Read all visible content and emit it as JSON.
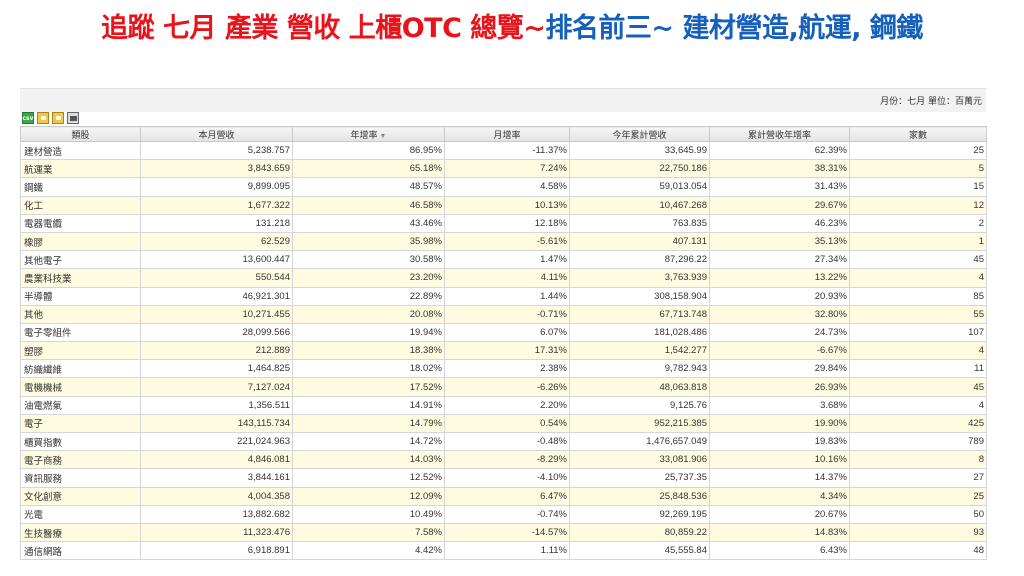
{
  "title": {
    "part1": "追蹤 七月 產業 營收 上櫃OTC 總覽~",
    "part2": "排名前三~ 建材營造,航運, 鋼鐵"
  },
  "unit_label": "月份：七月 單位：百萬元",
  "toolbar": {
    "csv_label": "csv",
    "icons": [
      "csv-icon",
      "lock-icon",
      "lock-icon",
      "print-icon"
    ]
  },
  "table": {
    "headers": [
      "類股",
      "本月營收",
      "年增率",
      "月增率",
      "今年累計營收",
      "累計營收年增率",
      "家數"
    ],
    "sort_indicator": "▼",
    "rows": [
      [
        "建材營造",
        "5,238.757",
        "86.95%",
        "-11.37%",
        "33,645.99",
        "62.39%",
        "25"
      ],
      [
        "航運業",
        "3,843.659",
        "65.18%",
        "7.24%",
        "22,750.186",
        "38.31%",
        "5"
      ],
      [
        "鋼鐵",
        "9,899.095",
        "48.57%",
        "4.58%",
        "59,013.054",
        "31.43%",
        "15"
      ],
      [
        "化工",
        "1,677.322",
        "46.58%",
        "10.13%",
        "10,467.268",
        "29.67%",
        "12"
      ],
      [
        "電器電纜",
        "131.218",
        "43.46%",
        "12.18%",
        "763.835",
        "46.23%",
        "2"
      ],
      [
        "橡膠",
        "62.529",
        "35.98%",
        "-5.61%",
        "407.131",
        "35.13%",
        "1"
      ],
      [
        "其他電子",
        "13,600.447",
        "30.58%",
        "1.47%",
        "87,296.22",
        "27.34%",
        "45"
      ],
      [
        "農業科技業",
        "550.544",
        "23.20%",
        "4.11%",
        "3,763.939",
        "13.22%",
        "4"
      ],
      [
        "半導體",
        "46,921.301",
        "22.89%",
        "1.44%",
        "308,158.904",
        "20.93%",
        "85"
      ],
      [
        "其他",
        "10,271.455",
        "20.08%",
        "-0.71%",
        "67,713.748",
        "32.80%",
        "55"
      ],
      [
        "電子零組件",
        "28,099.566",
        "19.94%",
        "6.07%",
        "181,028.486",
        "24.73%",
        "107"
      ],
      [
        "塑膠",
        "212.889",
        "18.38%",
        "17.31%",
        "1,542.277",
        "-6.67%",
        "4"
      ],
      [
        "紡織纖維",
        "1,464.825",
        "18.02%",
        "2.38%",
        "9,782.943",
        "29.84%",
        "11"
      ],
      [
        "電機機械",
        "7,127.024",
        "17.52%",
        "-6.26%",
        "48,063.818",
        "26.93%",
        "45"
      ],
      [
        "油電燃氣",
        "1,356.511",
        "14.91%",
        "2.20%",
        "9,125.76",
        "3.68%",
        "4"
      ],
      [
        "電子",
        "143,115.734",
        "14.79%",
        "0.54%",
        "952,215.385",
        "19.90%",
        "425"
      ],
      [
        "櫃買指數",
        "221,024.963",
        "14.72%",
        "-0.48%",
        "1,476,657.049",
        "19.83%",
        "789"
      ],
      [
        "電子商務",
        "4,846.081",
        "14.03%",
        "-8.29%",
        "33,081.906",
        "10.16%",
        "8"
      ],
      [
        "資訊服務",
        "3,844.161",
        "12.52%",
        "-4.10%",
        "25,737.35",
        "14.37%",
        "27"
      ],
      [
        "文化創意",
        "4,004.358",
        "12.09%",
        "6.47%",
        "25,848.536",
        "4.34%",
        "25"
      ],
      [
        "光電",
        "13,882.682",
        "10.49%",
        "-0.74%",
        "92,269.195",
        "20.67%",
        "50"
      ],
      [
        "生技醫療",
        "11,323.476",
        "7.58%",
        "-14.57%",
        "80,859.22",
        "14.83%",
        "93"
      ],
      [
        "通信網路",
        "6,918.891",
        "4.42%",
        "1.11%",
        "45,555.84",
        "6.43%",
        "48"
      ]
    ]
  }
}
